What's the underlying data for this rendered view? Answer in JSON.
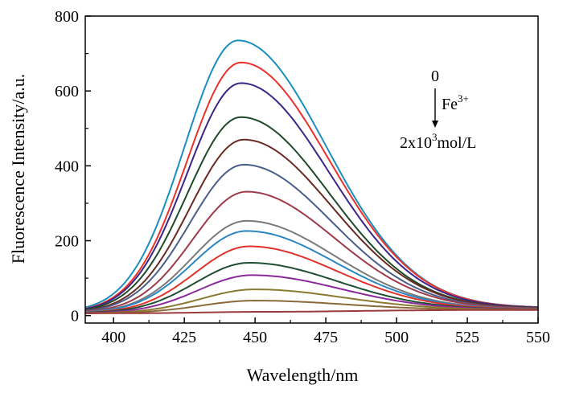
{
  "chart_data": {
    "type": "line",
    "xlabel": "Wavelength/nm",
    "ylabel": "Fluorescence Intensity/a.u.",
    "xlim": [
      390,
      550
    ],
    "ylim": [
      -20,
      800
    ],
    "xticks": [
      400,
      425,
      450,
      475,
      500,
      525,
      550
    ],
    "yticks": [
      0,
      200,
      400,
      600,
      800
    ],
    "grid": false,
    "legend": "none",
    "annotation": {
      "top": "0",
      "species": "Fe",
      "species_charge": "3+",
      "bottom_prefix": "2x10",
      "bottom_exp": "3",
      "bottom_suffix": "mol/L"
    },
    "series": [
      {
        "peak": 735,
        "peak_x": 444,
        "color": "#1a8fbf"
      },
      {
        "peak": 676,
        "peak_x": 445,
        "color": "#e8322b"
      },
      {
        "peak": 621,
        "peak_x": 445,
        "color": "#3a2688"
      },
      {
        "peak": 530,
        "peak_x": 445,
        "color": "#1f4a2a"
      },
      {
        "peak": 470,
        "peak_x": 446,
        "color": "#6a2a22"
      },
      {
        "peak": 403,
        "peak_x": 446,
        "color": "#4a5e8c"
      },
      {
        "peak": 331,
        "peak_x": 447,
        "color": "#9e3a4a"
      },
      {
        "peak": 253,
        "peak_x": 447,
        "color": "#7a7a7a"
      },
      {
        "peak": 226,
        "peak_x": 447,
        "color": "#2a86c2"
      },
      {
        "peak": 185,
        "peak_x": 448,
        "color": "#e0322c"
      },
      {
        "peak": 141,
        "peak_x": 448,
        "color": "#1f4f32"
      },
      {
        "peak": 108,
        "peak_x": 449,
        "color": "#8a2a9a"
      },
      {
        "peak": 70,
        "peak_x": 450,
        "color": "#8a7a30"
      },
      {
        "peak": 40,
        "peak_x": 450,
        "color": "#8a6a3a"
      },
      {
        "peak": 10,
        "peak_x": 452,
        "color": "#9a3a3a"
      }
    ]
  }
}
